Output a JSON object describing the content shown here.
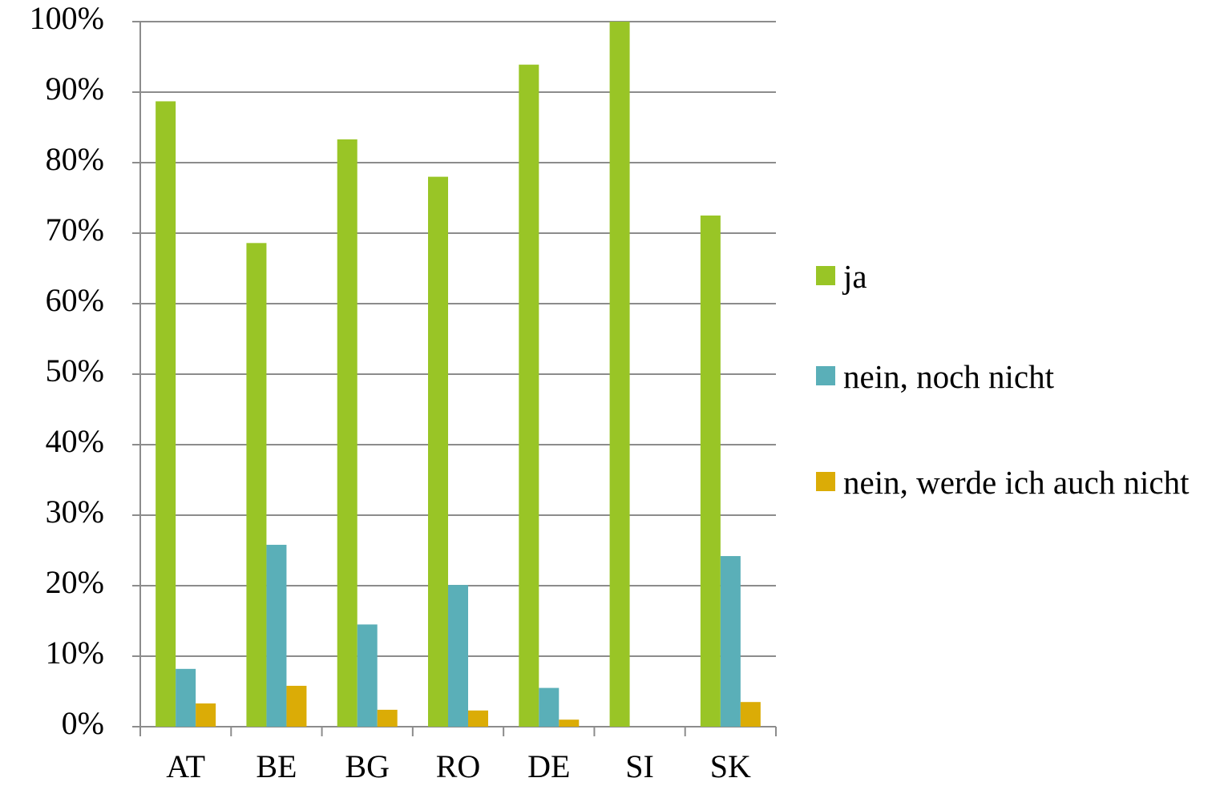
{
  "chart_data": {
    "type": "bar",
    "categories": [
      "AT",
      "BE",
      "BG",
      "RO",
      "DE",
      "SI",
      "SK"
    ],
    "series": [
      {
        "name": "ja",
        "color": "#99c526",
        "values": [
          88.7,
          68.6,
          83.3,
          78.0,
          93.9,
          100,
          72.5
        ]
      },
      {
        "name": "nein, noch nicht",
        "color": "#5aafb8",
        "values": [
          8.2,
          25.8,
          14.5,
          20.1,
          5.5,
          0,
          24.2
        ]
      },
      {
        "name": "nein, werde ich auch nicht",
        "color": "#dbac06",
        "values": [
          3.3,
          5.8,
          2.4,
          2.3,
          1.0,
          0,
          3.5
        ]
      }
    ],
    "ylim": [
      0,
      100
    ],
    "yticks": [
      {
        "value": 0,
        "label": "0%"
      },
      {
        "value": 10,
        "label": "10%"
      },
      {
        "value": 20,
        "label": "20%"
      },
      {
        "value": 30,
        "label": "30%"
      },
      {
        "value": 40,
        "label": "40%"
      },
      {
        "value": 50,
        "label": "50%"
      },
      {
        "value": 60,
        "label": "60%"
      },
      {
        "value": 70,
        "label": "70%"
      },
      {
        "value": 80,
        "label": "80%"
      },
      {
        "value": 90,
        "label": "90%"
      },
      {
        "value": 100,
        "label": "100%"
      }
    ],
    "grid": true,
    "legend": "right"
  }
}
